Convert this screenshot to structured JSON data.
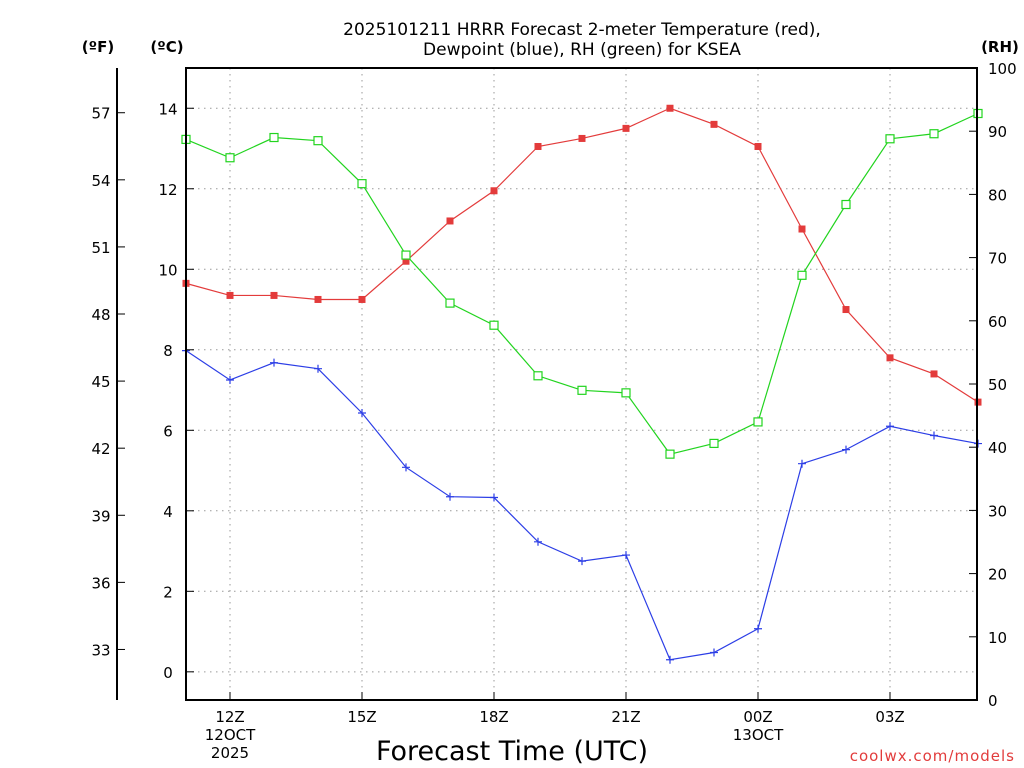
{
  "chart_data": {
    "type": "line",
    "title_line1": "2025101211 HRRR Forecast 2-meter Temperature (red),",
    "title_line2": "Dewpoint (blue), RH (green) for KSEA",
    "xlabel": "Forecast Time (UTC)",
    "credit": "coolwx.com/models",
    "hours": [
      0,
      1,
      2,
      3,
      4,
      5,
      6,
      7,
      8,
      9,
      10,
      11,
      12,
      13,
      14,
      15,
      16,
      17,
      18
    ],
    "x_ticks": [
      {
        "hour": 1,
        "line1": "12Z",
        "line2": "12OCT",
        "line3": "2025"
      },
      {
        "hour": 4,
        "line1": "15Z",
        "line2": "",
        "line3": ""
      },
      {
        "hour": 7,
        "line1": "18Z",
        "line2": "",
        "line3": ""
      },
      {
        "hour": 10,
        "line1": "21Z",
        "line2": "",
        "line3": ""
      },
      {
        "hour": 13,
        "line1": "00Z",
        "line2": "13OCT",
        "line3": ""
      },
      {
        "hour": 16,
        "line1": "03Z",
        "line2": "",
        "line3": ""
      }
    ],
    "celsius_axis": {
      "unit_label": "(ºC)",
      "range": [
        -0.7,
        15.0
      ],
      "ticks": [
        "0",
        "2",
        "4",
        "6",
        "8",
        "10",
        "12",
        "14"
      ]
    },
    "fahrenheit_axis": {
      "unit_label": "(ºF)",
      "ticks": [
        "33",
        "36",
        "39",
        "42",
        "45",
        "48",
        "51",
        "54",
        "57"
      ]
    },
    "rh_axis": {
      "unit_label": "(RH)",
      "range": [
        0,
        100
      ],
      "ticks": [
        "0",
        "10",
        "20",
        "30",
        "40",
        "50",
        "60",
        "70",
        "80",
        "90",
        "100"
      ]
    },
    "series": [
      {
        "name": "Temperature",
        "unit": "C",
        "color": "#e33b3b",
        "marker": "filled-square",
        "values": [
          9.65,
          9.35,
          9.35,
          9.25,
          9.25,
          10.2,
          11.2,
          11.95,
          13.05,
          13.25,
          13.5,
          14.0,
          13.6,
          13.05,
          11.0,
          9.0,
          7.8,
          7.4,
          6.7
        ]
      },
      {
        "name": "Dewpoint",
        "unit": "C",
        "color": "#2c3ee6",
        "marker": "plus",
        "values": [
          7.98,
          7.25,
          7.68,
          7.53,
          6.43,
          5.08,
          4.35,
          4.33,
          3.23,
          2.75,
          2.9,
          0.3,
          0.48,
          1.07,
          5.17,
          5.52,
          6.1,
          5.87,
          5.67
        ]
      },
      {
        "name": "RH",
        "unit": "%",
        "color": "#22d41f",
        "marker": "open-square",
        "values": [
          88.7,
          85.8,
          89.0,
          88.5,
          81.7,
          70.4,
          62.8,
          59.3,
          51.3,
          49.0,
          48.6,
          38.9,
          40.6,
          44.0,
          67.2,
          78.4,
          88.8,
          89.6,
          92.8
        ]
      }
    ]
  }
}
